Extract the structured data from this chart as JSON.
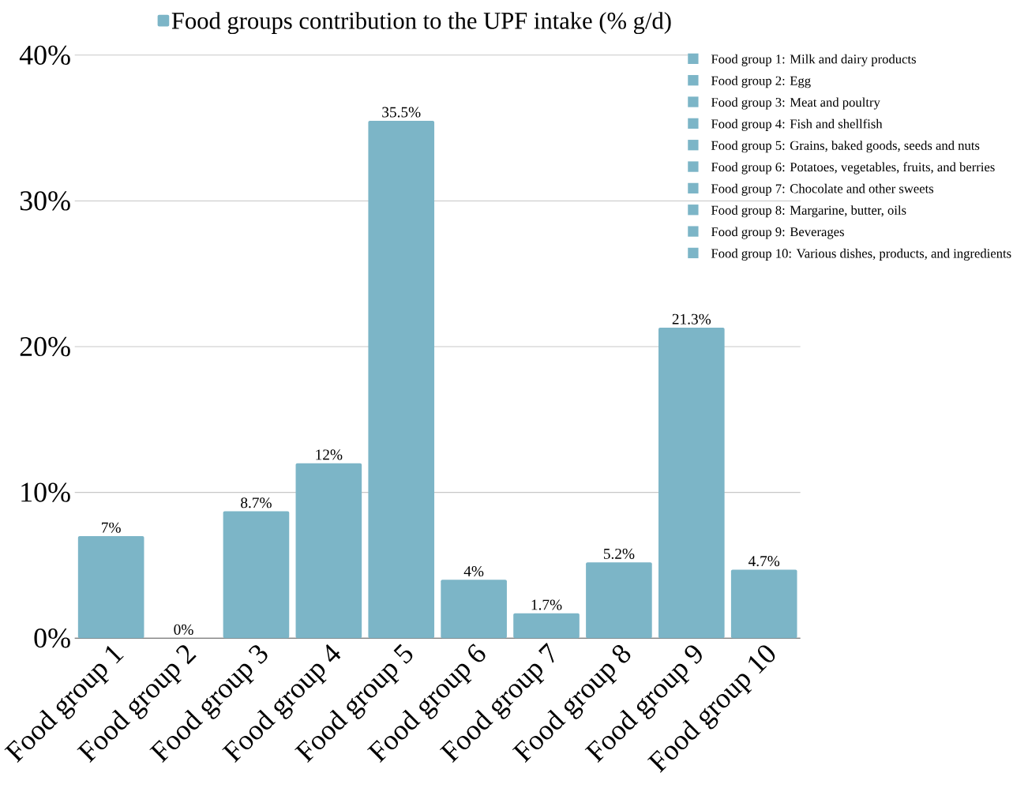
{
  "chart_data": {
    "type": "bar",
    "categories": [
      "Food group 1",
      "Food group 2",
      "Food group 3",
      "Food group 4",
      "Food group 5",
      "Food group 6",
      "Food group 7",
      "Food group 8",
      "Food group 9",
      "Food group 10"
    ],
    "series": [
      {
        "name": "Food groups contribution to the UPF intake (% g/d)",
        "color": "#7cb5c7",
        "values": [
          7,
          0,
          8.7,
          12,
          35.5,
          4,
          1.7,
          5.2,
          21.3,
          4.7
        ]
      }
    ],
    "value_labels": [
      "7%",
      "0%",
      "8.7%",
      "12%",
      "35.5%",
      "4%",
      "1.7%",
      "5.2%",
      "21.3%",
      "4.7%"
    ],
    "ylim": [
      0,
      40
    ],
    "yticks": [
      {
        "value": 0,
        "label": "0%"
      },
      {
        "value": 10,
        "label": "10%"
      },
      {
        "value": 20,
        "label": "20%"
      },
      {
        "value": 30,
        "label": "30%"
      },
      {
        "value": 40,
        "label": "40%"
      }
    ],
    "grid": "y",
    "legend": "top",
    "annotations": [
      "Food group 1: Milk and dairy products",
      "Food group 2: Egg",
      "Food group 3: Meat and poultry",
      "Food group 4: Fish and shellfish",
      "Food group 5: Grains, baked goods, seeds and nuts",
      "Food group 6: Potatoes, vegetables, fruits, and berries",
      "Food group 7: Chocolate and other sweets",
      "Food group 8: Margarine, butter, oils",
      "Food group 9: Beverages",
      "Food group 10: Various dishes, products, and ingredients"
    ]
  }
}
